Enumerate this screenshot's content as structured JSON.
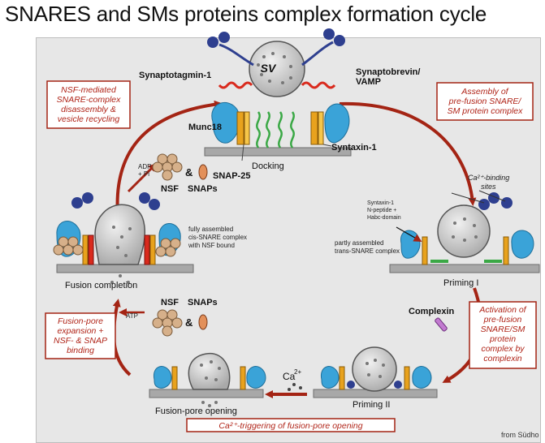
{
  "title": "SNARES and SMs proteins complex formation cycle",
  "labels": {
    "synaptotagmin": "Synaptotagmin-1",
    "synaptobrevin_1": "Synaptobrevin/",
    "synaptobrevin_2": "VAMP",
    "sv": "SV",
    "munc18": "Munc18",
    "docking": "Docking",
    "syntaxin": "Syntaxin-1",
    "snap25": "SNAP-25",
    "adp": "ADP",
    "pi": "+ Pi",
    "amp": "&",
    "nsf": "NSF",
    "snaps": "SNAPs",
    "ca_sites_1": "Ca²⁺-binding",
    "ca_sites_2": "sites",
    "syntaxin_np_1": "Syntaxin-1",
    "syntaxin_np_2": "N-peptide +",
    "syntaxin_np_3": "Habc-domain",
    "partly_1": "partly assembled",
    "partly_2": "trans-SNARE complex",
    "cis_1": "fully assembled",
    "cis_2": "cis-SNARE complex",
    "cis_3": "with NSF bound",
    "priming1": "Priming I",
    "complexin": "Complexin",
    "priming2": "Priming II",
    "ca2": "Ca",
    "ca2_sup": "2+",
    "fusion_pore": "Fusion-pore opening",
    "fusion_completion": "Fusion completion",
    "atp": "ATP",
    "nsf2": "NSF",
    "snaps2": "SNAPs",
    "amp2": "&"
  },
  "boxes": {
    "nsf_mediated": [
      "NSF-mediated",
      "SNARE-complex",
      "disassembly &",
      "vesicle recycling"
    ],
    "assembly": [
      "Assembly of",
      "pre-fusion SNARE/",
      "SM protein complex"
    ],
    "activation": [
      "Activation of",
      "pre-fusion",
      "SNARE/SM",
      "protein",
      "complex by",
      "complexin"
    ],
    "ca_trigger": "Ca²⁺-triggering of fusion-pore opening",
    "fusion_pore_exp": [
      "Fusion-pore",
      "expansion +",
      "NSF- & SNAP",
      "binding"
    ]
  },
  "credit": "from Südho",
  "colors": {
    "arrow": "#a42414",
    "box_border": "#a42414",
    "box_text": "#b02418",
    "membrane": "#9e9e9e",
    "munc18": "#3aa3d8",
    "syntaxin": "#e8a21d",
    "snap25": "#3aa845",
    "synaptobrevin": "#d92a1d",
    "vesicle": "#cfcfcf",
    "synaptotagmin": "#2e3f8f"
  }
}
